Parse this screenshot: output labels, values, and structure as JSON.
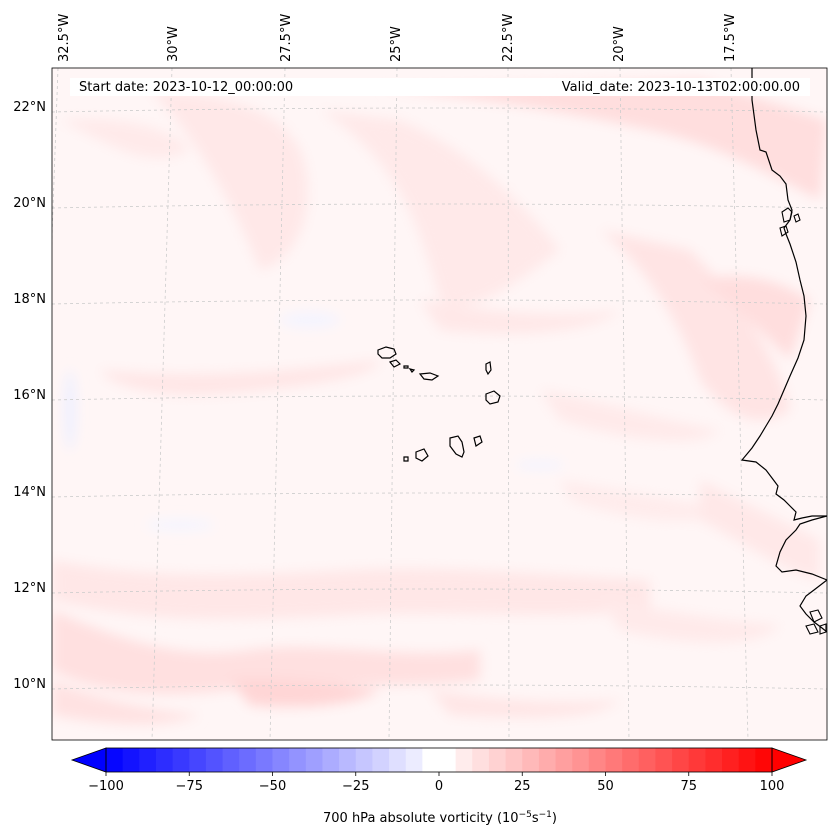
{
  "header": {
    "start_date": "Start date: 2023-10-12_00:00:00",
    "valid_date": "Valid_date: 2023-10-13T02:00:00.00"
  },
  "axes": {
    "lon_labels": [
      "32.5°W",
      "30°W",
      "27.5°W",
      "25°W",
      "22.5°W",
      "20°W",
      "17.5°W"
    ],
    "lat_labels": [
      "22°N",
      "20°N",
      "18°N",
      "16°N",
      "14°N",
      "12°N",
      "10°N"
    ]
  },
  "colorbar": {
    "tick_labels": [
      "−100",
      "−75",
      "−50",
      "−25",
      "0",
      "25",
      "50",
      "75",
      "100"
    ],
    "label_main": "700 hPa absolute vorticity (10",
    "label_exp1": "−5",
    "label_mid": "s",
    "label_exp2": "−1",
    "label_end": ")",
    "min_color": "#0000ff",
    "mid_color": "#ffffff",
    "max_color": "#ff0000"
  },
  "chart_data": {
    "type": "heatmap",
    "variable": "700 hPa absolute vorticity",
    "units": "10^-5 s^-1",
    "color_range": [
      -100,
      100
    ],
    "colorbar_ticks": [
      -100,
      -75,
      -50,
      -25,
      0,
      25,
      50,
      75,
      100
    ],
    "lon_range_deg": [
      -33,
      -15.5
    ],
    "lat_range_deg": [
      9,
      23
    ],
    "field_description_values": "weak positive vorticity (0 to ~15) across most of domain, slightly stronger (~10-15) in bands near 21-22N and 9.5-11N, isolated weak negative patches"
  },
  "colors": {
    "background_field": "#fff6f6",
    "coast": "#000000",
    "grid": "#cccccc"
  }
}
